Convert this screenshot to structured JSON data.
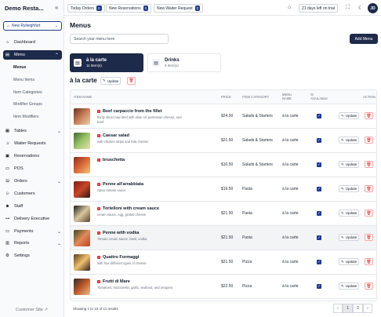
{
  "brand": "Demo Resta...",
  "branch": "New Rylieighfurt",
  "nav": {
    "dashboard": "Dashboard",
    "menu": "Menu",
    "menu_sub": [
      "Menus",
      "Menu Items",
      "Item Categories",
      "Modifier Groups",
      "Item Modifiers"
    ],
    "tables": "Tables",
    "waiter_requests": "Waiter Requests",
    "reservations": "Reservations",
    "pos": "POS",
    "orders": "Orders",
    "customers": "Customers",
    "staff": "Staff",
    "delivery_executive": "Delivery Executive",
    "payments": "Payments",
    "reports": "Reports",
    "settings": "Settings"
  },
  "customer_site": "Customer Site",
  "topbar": {
    "today_orders": {
      "label": "Today Orders",
      "count": "0"
    },
    "new_reservations": {
      "label": "New Reservations",
      "count": "0"
    },
    "new_waiter_request": {
      "label": "New Waiter Request",
      "count": "0"
    },
    "trial": "21 days left on trial",
    "avatar": "JD"
  },
  "page": {
    "title": "Menus",
    "search_placeholder": "Search your menu here",
    "add_menu": "Add Menu"
  },
  "menus": [
    {
      "name": "à la carte",
      "count": "11 Item(s)"
    },
    {
      "name": "Drinks",
      "count": "9 Item(s)"
    }
  ],
  "current_menu": "à la carte",
  "update_label": "Update",
  "table": {
    "headers": {
      "item_name": "ITEM NAME",
      "price": "PRICE",
      "category": "ITEM CATEGORY",
      "menu_name": "MENU NAME",
      "available": "IS AVAILABLE",
      "action": "ACTION"
    },
    "rows": [
      {
        "name": "Beef carpaccio from the fillet",
        "desc": "thinly sliced raw beef with olive oil, parmesan cheese, and beef",
        "price": "$24.50",
        "category": "Salads & Starters",
        "menu": "à la carte"
      },
      {
        "name": "Caesar salad",
        "desc": "with chicken strips and feta cheese",
        "price": "$21.50",
        "category": "Salads & Starters",
        "menu": "à la carte"
      },
      {
        "name": "bruschetta",
        "desc": "",
        "price": "$10.50",
        "category": "Salads & Starters",
        "menu": "à la carte"
      },
      {
        "name": "Penne all'arrabbiata",
        "desc": "Spicy tomato sauce",
        "price": "$19.50",
        "category": "Pasta",
        "menu": "à la carte"
      },
      {
        "name": "Tortelloni with cream sauce",
        "desc": "cream sauce, egg, grated cheese",
        "price": "$21.50",
        "category": "Pasta",
        "menu": "à la carte"
      },
      {
        "name": "Penne with vodka",
        "desc": "Tomato cream sauce, basil, vodka",
        "price": "$21.50",
        "category": "Pasta",
        "menu": "à la carte"
      },
      {
        "name": "Quattro Formaggi",
        "desc": "with four different types of cheese",
        "price": "$21.50",
        "category": "Pizza",
        "menu": "à la carte"
      },
      {
        "name": "Frutti di Mare",
        "desc": "Tomatoes, mozzarella, garlic, seafood, and oregano",
        "price": "$22.50",
        "category": "Pizza",
        "menu": "à la carte"
      }
    ]
  },
  "pagination": {
    "summary": "Showing 1 to 10 of 11 results",
    "prev": "‹",
    "pages": [
      "1",
      "2"
    ],
    "next": "›"
  }
}
